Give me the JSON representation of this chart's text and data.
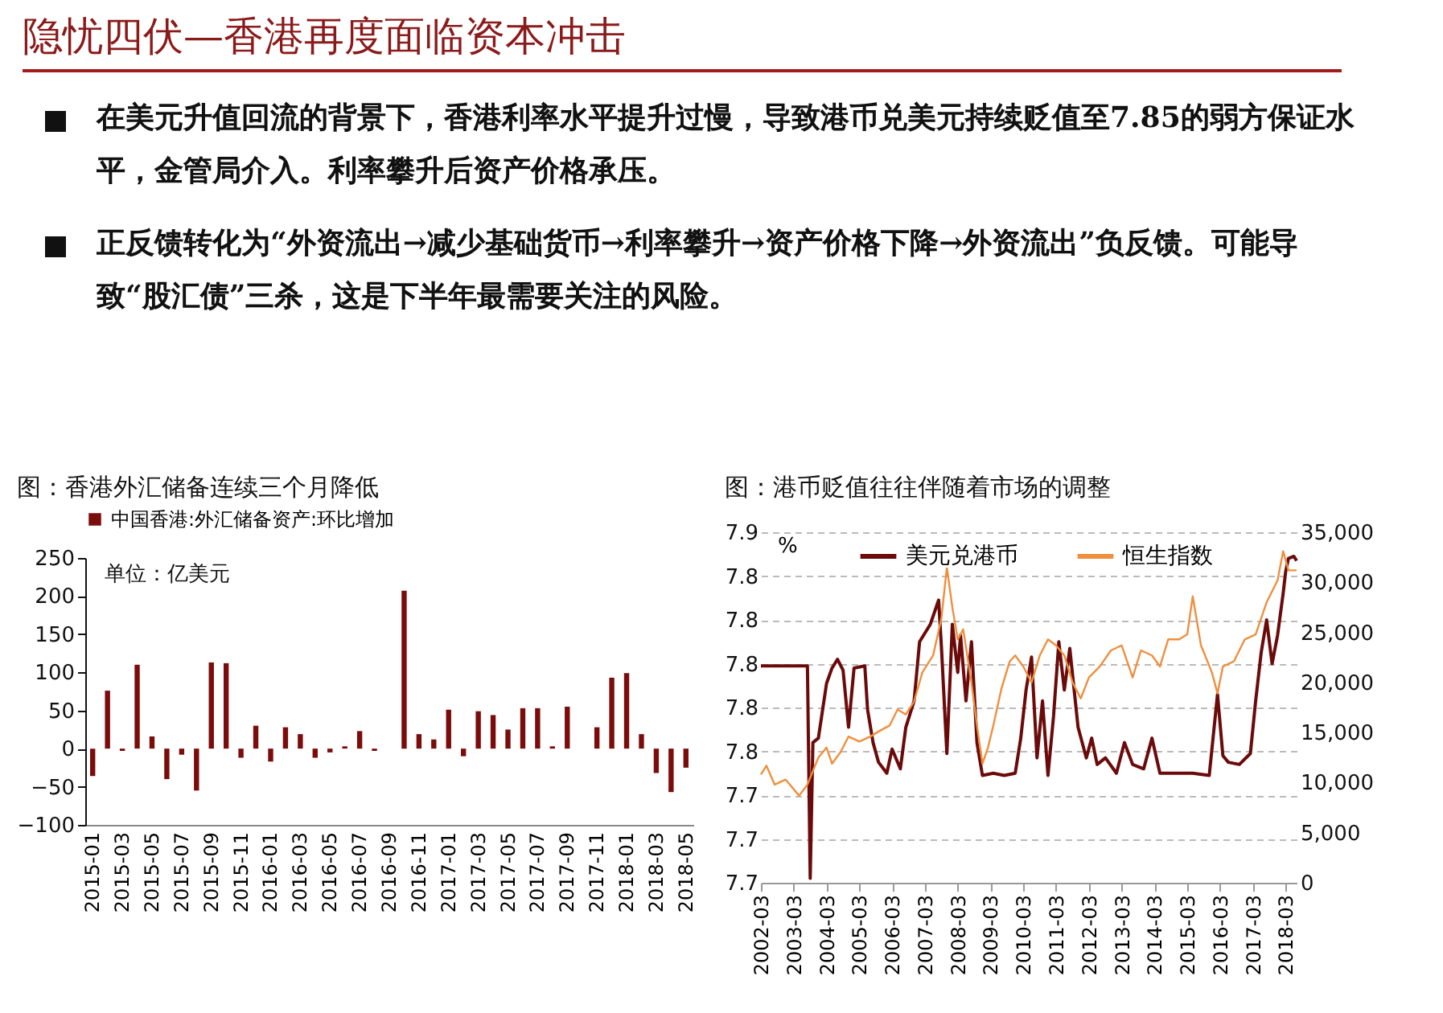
{
  "chart_data": [
    {
      "type": "other",
      "title": "隐忧四伏—香港再度面临资本冲击",
      "annotations": [
        "在美元升值回流的背景下，香港利率水平提升过慢，导致港币兑美元持续贬值至7.85的弱方保证水平，金管局介入。利率攀升后资产价格承压。",
        "正反馈转化为“外资流出→减少基础货币→利率攀升→资产价格下降→外资流出”负反馈。可能导致“股汇债”三杀，这是下半年最需要关注的风险。"
      ]
    },
    {
      "type": "bar",
      "title": "图：香港外汇储备连续三个月降低",
      "annotations": [
        "单位：亿美元"
      ],
      "legend": "top",
      "categories": [
        "2015-01",
        null,
        "2015-03",
        null,
        "2015-05",
        null,
        "2015-07",
        null,
        "2015-09",
        null,
        "2015-11",
        null,
        "2016-01",
        null,
        "2016-03",
        null,
        "2016-05",
        null,
        "2016-07",
        null,
        "2016-09",
        null,
        "2016-11",
        null,
        "2017-01",
        null,
        "2017-03",
        null,
        "2017-05",
        null,
        "2017-07",
        null,
        "2017-09",
        null,
        "2017-11",
        null,
        "2018-01",
        null,
        "2018-03",
        null,
        "2018-05"
      ],
      "series": [
        {
          "name": "中国香港:外汇储备资产:环比增加",
          "color": "#7b0c0c",
          "values": [
            -36,
            76,
            -3,
            110,
            16,
            -40,
            -8,
            -55,
            113,
            112,
            -12,
            30,
            -17,
            28,
            19,
            -12,
            -5,
            3,
            23,
            -3,
            0,
            207,
            19,
            12,
            51,
            -10,
            49,
            44,
            25,
            53,
            53,
            3,
            55,
            0,
            28,
            93,
            99,
            19,
            -32,
            -57,
            -25
          ]
        }
      ],
      "ylim": [
        -100,
        250
      ],
      "yticks": [
        -100,
        -50,
        0,
        50,
        100,
        150,
        200,
        250
      ]
    },
    {
      "type": "line",
      "title": "图：港币贬值往往伴随着市场的调整",
      "ylabel": "%",
      "legend": "top",
      "grid": "y",
      "xlim": [
        "2002-03",
        "2018-07"
      ],
      "xticks": [
        "2002-03",
        "2003-03",
        "2004-03",
        "2005-03",
        "2006-03",
        "2007-03",
        "2008-03",
        "2009-03",
        "2010-03",
        "2011-03",
        "2012-03",
        "2013-03",
        "2014-03",
        "2015-03",
        "2016-03",
        "2017-03",
        "2018-03"
      ],
      "ylim": [
        7.7,
        7.86
      ],
      "yticks": [
        {
          "value": 7.7,
          "label": "7.7"
        },
        {
          "value": 7.72,
          "label": "7.7"
        },
        {
          "value": 7.74,
          "label": "7.7"
        },
        {
          "value": 7.76,
          "label": "7.8"
        },
        {
          "value": 7.78,
          "label": "7.8"
        },
        {
          "value": 7.8,
          "label": "7.8"
        },
        {
          "value": 7.82,
          "label": "7.8"
        },
        {
          "value": 7.84,
          "label": "7.8"
        },
        {
          "value": 7.86,
          "label": "7.9"
        }
      ],
      "y2lim": [
        0,
        35000
      ],
      "y2ticks": [
        {
          "value": 0,
          "label": "0"
        },
        {
          "value": 5000,
          "label": "5,000"
        },
        {
          "value": 10000,
          "label": "10,000"
        },
        {
          "value": 15000,
          "label": "15,000"
        },
        {
          "value": 20000,
          "label": "20,000"
        },
        {
          "value": 25000,
          "label": "25,000"
        },
        {
          "value": 30000,
          "label": "30,000"
        },
        {
          "value": 35000,
          "label": "35,000"
        }
      ],
      "series": [
        {
          "name": "美元兑港币",
          "color": "#6b0a0a",
          "x": [
            "2002-03",
            "2003-08",
            "2003-09",
            "2003-10",
            "2003-12",
            "2004-03",
            "2004-05",
            "2004-07",
            "2004-09",
            "2004-11",
            "2005-01",
            "2005-05",
            "2005-06",
            "2005-08",
            "2005-10",
            "2006-01",
            "2006-03",
            "2006-06",
            "2006-08",
            "2006-11",
            "2007-01",
            "2007-05",
            "2007-08",
            "2007-09",
            "2007-11",
            "2008-01",
            "2008-03",
            "2008-04",
            "2008-06",
            "2008-08",
            "2008-10",
            "2008-12",
            "2009-04",
            "2009-08",
            "2009-12",
            "2010-02",
            "2010-04",
            "2010-06",
            "2010-08",
            "2010-10",
            "2010-12",
            "2011-02",
            "2011-04",
            "2011-06",
            "2011-08",
            "2011-11",
            "2012-02",
            "2012-04",
            "2012-06",
            "2012-09",
            "2013-01",
            "2013-04",
            "2013-07",
            "2013-11",
            "2014-02",
            "2014-05",
            "2014-11",
            "2015-05",
            "2015-11",
            "2016-02",
            "2016-04",
            "2016-06",
            "2016-10",
            "2017-02",
            "2017-04",
            "2017-06",
            "2017-08",
            "2017-10",
            "2017-12",
            "2018-02",
            "2018-03",
            "2018-04",
            "2018-06",
            "2018-07"
          ],
          "values": [
            7.799,
            7.799,
            7.702,
            7.764,
            7.766,
            7.791,
            7.798,
            7.802,
            7.797,
            7.771,
            7.798,
            7.799,
            7.779,
            7.764,
            7.755,
            7.75,
            7.761,
            7.752,
            7.771,
            7.783,
            7.81,
            7.818,
            7.829,
            7.808,
            7.759,
            7.818,
            7.796,
            7.813,
            7.783,
            7.81,
            7.764,
            7.749,
            7.75,
            7.749,
            7.75,
            7.766,
            7.788,
            7.803,
            7.757,
            7.783,
            7.749,
            7.776,
            7.81,
            7.788,
            7.807,
            7.771,
            7.757,
            7.766,
            7.754,
            7.757,
            7.75,
            7.764,
            7.754,
            7.752,
            7.766,
            7.75,
            7.75,
            7.75,
            7.749,
            7.786,
            7.758,
            7.755,
            7.754,
            7.759,
            7.783,
            7.805,
            7.82,
            7.8,
            7.813,
            7.832,
            7.842,
            7.848,
            7.849,
            7.847
          ]
        },
        {
          "name": "恒生指数",
          "color": "#ef8f3e",
          "axis": "y2",
          "x": [
            "2002-03",
            "2002-05",
            "2002-08",
            "2002-12",
            "2003-05",
            "2003-08",
            "2003-12",
            "2004-03",
            "2004-05",
            "2004-08",
            "2004-11",
            "2005-03",
            "2005-07",
            "2005-10",
            "2006-02",
            "2006-05",
            "2006-08",
            "2006-11",
            "2007-02",
            "2007-06",
            "2007-09",
            "2007-11",
            "2008-01",
            "2008-03",
            "2008-05",
            "2008-08",
            "2008-10",
            "2008-12",
            "2009-02",
            "2009-04",
            "2009-07",
            "2009-10",
            "2009-12",
            "2010-03",
            "2010-06",
            "2010-09",
            "2010-12",
            "2011-03",
            "2011-06",
            "2011-09",
            "2011-12",
            "2012-03",
            "2012-07",
            "2012-11",
            "2013-03",
            "2013-07",
            "2013-10",
            "2014-02",
            "2014-05",
            "2014-08",
            "2014-12",
            "2015-03",
            "2015-05",
            "2015-08",
            "2015-12",
            "2016-02",
            "2016-04",
            "2016-08",
            "2016-12",
            "2017-04",
            "2017-08",
            "2017-12",
            "2018-02",
            "2018-04",
            "2018-07"
          ],
          "values": [
            10800,
            11700,
            9800,
            10300,
            8700,
            9800,
            12500,
            13500,
            11900,
            13000,
            14600,
            14100,
            14600,
            15100,
            15700,
            17300,
            16800,
            18100,
            21000,
            22700,
            26400,
            31500,
            27500,
            24300,
            25300,
            20000,
            15700,
            11900,
            13500,
            15700,
            19400,
            22100,
            22700,
            21600,
            20000,
            22700,
            24300,
            23700,
            22700,
            20000,
            18400,
            20500,
            21600,
            23200,
            23700,
            20500,
            23200,
            22700,
            21600,
            24300,
            24300,
            24800,
            28600,
            23700,
            21000,
            18900,
            21600,
            22100,
            24300,
            24800,
            28000,
            30200,
            33100,
            31200,
            31200
          ]
        }
      ]
    }
  ]
}
